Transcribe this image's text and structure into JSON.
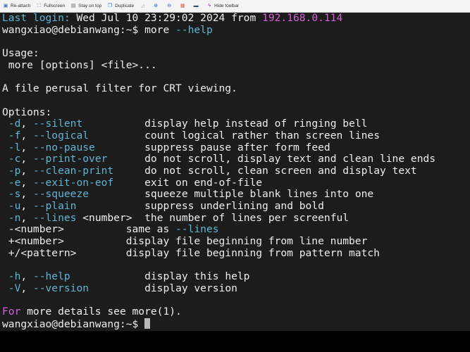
{
  "toolbar": {
    "items": [
      {
        "label": "Re-attach",
        "icon": "reattach-icon"
      },
      {
        "label": "Fullscreen",
        "icon": "fullscreen-icon"
      },
      {
        "label": "Stay on top",
        "icon": "stay-on-top-icon"
      },
      {
        "label": "Duplicate",
        "icon": "duplicate-icon"
      },
      {
        "label": "",
        "icon": "resize-icon"
      },
      {
        "label": "",
        "icon": "zoom-in-icon"
      },
      {
        "label": "",
        "icon": "zoom-out-icon"
      },
      {
        "label": "",
        "icon": "settings-icon"
      },
      {
        "label": "",
        "icon": "print-icon"
      },
      {
        "label": "Hide toolbar",
        "icon": "hide-toolbar-icon"
      }
    ]
  },
  "colors": {
    "background": "#1c1c1c",
    "text": "#eeeeee",
    "cyan": "#5fb4d4",
    "magenta": "#d75fd7"
  },
  "terminal": {
    "lines": [
      [
        [
          "Last login:",
          "cyan"
        ],
        [
          " Wed Jul 10 23:29:02 2024 from ",
          ""
        ],
        [
          "192.168.0.114",
          "mag"
        ]
      ],
      [
        [
          "wangxiao@debianwang:~$ more ",
          ""
        ],
        [
          "--help",
          "cyan"
        ]
      ],
      [],
      [
        [
          "Usage:",
          ""
        ]
      ],
      [
        [
          " more [options] <file>...",
          ""
        ]
      ],
      [],
      [
        [
          "A file perusal filter for CRT viewing.",
          ""
        ]
      ],
      [],
      [
        [
          "Options:",
          ""
        ]
      ],
      [
        [
          " ",
          ""
        ],
        [
          "-d",
          "cyan"
        ],
        [
          ", ",
          ""
        ],
        [
          "--silent",
          "cyan"
        ],
        [
          "          display help instead of ringing bell",
          ""
        ]
      ],
      [
        [
          " ",
          ""
        ],
        [
          "-f",
          "cyan"
        ],
        [
          ", ",
          ""
        ],
        [
          "--logical",
          "cyan"
        ],
        [
          "         count logical rather than screen lines",
          ""
        ]
      ],
      [
        [
          " ",
          ""
        ],
        [
          "-l",
          "cyan"
        ],
        [
          ", ",
          ""
        ],
        [
          "--no-pause",
          "cyan"
        ],
        [
          "        suppress pause after form feed",
          ""
        ]
      ],
      [
        [
          " ",
          ""
        ],
        [
          "-c",
          "cyan"
        ],
        [
          ", ",
          ""
        ],
        [
          "--print-over",
          "cyan"
        ],
        [
          "      do not scroll, display text and clean line ends",
          ""
        ]
      ],
      [
        [
          " ",
          ""
        ],
        [
          "-p",
          "cyan"
        ],
        [
          ", ",
          ""
        ],
        [
          "--clean-print",
          "cyan"
        ],
        [
          "     do not scroll, clean screen and display text",
          ""
        ]
      ],
      [
        [
          " ",
          ""
        ],
        [
          "-e",
          "cyan"
        ],
        [
          ", ",
          ""
        ],
        [
          "--exit-on-eof",
          "cyan"
        ],
        [
          "     exit on end-of-file",
          ""
        ]
      ],
      [
        [
          " ",
          ""
        ],
        [
          "-s",
          "cyan"
        ],
        [
          ", ",
          ""
        ],
        [
          "--squeeze",
          "cyan"
        ],
        [
          "         squeeze multiple blank lines into one",
          ""
        ]
      ],
      [
        [
          " ",
          ""
        ],
        [
          "-u",
          "cyan"
        ],
        [
          ", ",
          ""
        ],
        [
          "--plain",
          "cyan"
        ],
        [
          "           suppress underlining and bold",
          ""
        ]
      ],
      [
        [
          " ",
          ""
        ],
        [
          "-n",
          "cyan"
        ],
        [
          ", ",
          ""
        ],
        [
          "--lines",
          "cyan"
        ],
        [
          " <number>  the number of lines per screenful",
          ""
        ]
      ],
      [
        [
          " -<number>          same as ",
          ""
        ],
        [
          "--lines",
          "cyan"
        ]
      ],
      [
        [
          " +<number>          display file beginning from line number",
          ""
        ]
      ],
      [
        [
          " +/<pattern>        display file beginning from pattern match",
          ""
        ]
      ],
      [],
      [
        [
          " ",
          ""
        ],
        [
          "-h",
          "cyan"
        ],
        [
          ", ",
          ""
        ],
        [
          "--help",
          "cyan"
        ],
        [
          "            display this help",
          ""
        ]
      ],
      [
        [
          " ",
          ""
        ],
        [
          "-V",
          "cyan"
        ],
        [
          ", ",
          ""
        ],
        [
          "--version",
          "cyan"
        ],
        [
          "         display version",
          ""
        ]
      ],
      [],
      [
        [
          "For",
          "mag"
        ],
        [
          " more details see more(1).",
          ""
        ]
      ],
      [
        [
          "wangxiao@debianwang:~$ ",
          ""
        ]
      ]
    ]
  }
}
